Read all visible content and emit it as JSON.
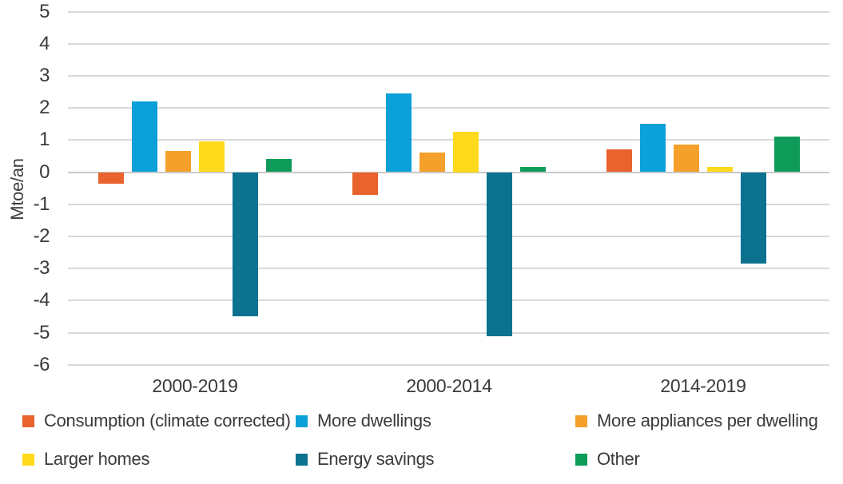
{
  "chart_data": {
    "type": "bar",
    "title": "",
    "xlabel": "",
    "ylabel": "Mtoe/an",
    "ylim": [
      -6,
      5
    ],
    "ytick_step": 1,
    "grid": "horizontal",
    "legend_position": "bottom",
    "categories": [
      "2000-2019",
      "2000-2014",
      "2014-2019"
    ],
    "series": [
      {
        "name": "Consumption (climate corrected)",
        "color": "#E8632D",
        "values": [
          -0.35,
          -0.7,
          0.7
        ]
      },
      {
        "name": "More dwellings",
        "color": "#0BA0D8",
        "values": [
          2.2,
          2.45,
          1.5
        ]
      },
      {
        "name": "More appliances per dwelling",
        "color": "#F5A02B",
        "values": [
          0.65,
          0.6,
          0.85
        ]
      },
      {
        "name": "Larger homes",
        "color": "#FFD91C",
        "values": [
          0.95,
          1.25,
          0.15
        ]
      },
      {
        "name": "Energy savings",
        "color": "#0C7290",
        "values": [
          -4.5,
          -5.1,
          -2.85
        ]
      },
      {
        "name": "Other",
        "color": "#0E9B5A",
        "values": [
          0.4,
          0.15,
          1.1
        ]
      }
    ]
  }
}
